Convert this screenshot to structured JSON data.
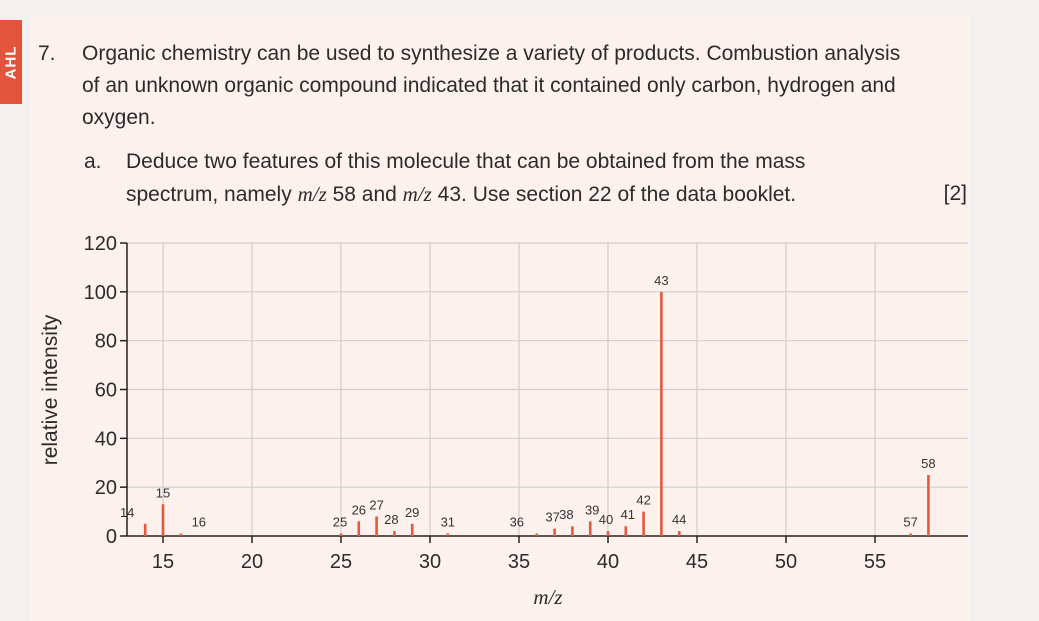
{
  "side_tab": {
    "label": "AHL"
  },
  "question": {
    "number": "7.",
    "text": "Organic chemistry can be used to synthesize a variety of products. Combustion analysis of an unknown organic compound indicated that it contained only carbon, hydrogen and oxygen."
  },
  "part_a": {
    "letter": "a.",
    "line1": "Deduce two features of this molecule that can be obtained from the mass",
    "line2_pre": "spectrum, namely ",
    "mz_1": "m/z",
    "val_1": " 58 and ",
    "mz_2": "m/z",
    "val_2": " 43.  Use section 22 of the data booklet.",
    "marks": "[2]"
  },
  "colors": {
    "bar": "#e4583c",
    "grid": "#cfcfcf",
    "axis": "#222222",
    "accent": "#e2553c"
  },
  "chart_data": {
    "type": "bar",
    "xlabel": "m/z",
    "ylabel": "relative intensity",
    "xlim": [
      13,
      58.5
    ],
    "ylim": [
      0,
      120
    ],
    "xticks": [
      15,
      20,
      25,
      30,
      35,
      40,
      45,
      50,
      55
    ],
    "yticks": [
      0,
      20,
      40,
      60,
      80,
      100,
      120
    ],
    "grid": true,
    "peaks": [
      {
        "mz": 14,
        "intensity": 5,
        "label": "14"
      },
      {
        "mz": 15,
        "intensity": 13,
        "label": "15"
      },
      {
        "mz": 16,
        "intensity": 1,
        "label": "16"
      },
      {
        "mz": 25,
        "intensity": 1,
        "label": "25"
      },
      {
        "mz": 26,
        "intensity": 6,
        "label": "26"
      },
      {
        "mz": 27,
        "intensity": 8,
        "label": "27"
      },
      {
        "mz": 28,
        "intensity": 2,
        "label": "28"
      },
      {
        "mz": 29,
        "intensity": 5,
        "label": "29"
      },
      {
        "mz": 31,
        "intensity": 1,
        "label": "31"
      },
      {
        "mz": 36,
        "intensity": 1,
        "label": "36"
      },
      {
        "mz": 37,
        "intensity": 3,
        "label": "37"
      },
      {
        "mz": 38,
        "intensity": 4,
        "label": "38"
      },
      {
        "mz": 39,
        "intensity": 6,
        "label": "39"
      },
      {
        "mz": 40,
        "intensity": 2,
        "label": "40"
      },
      {
        "mz": 41,
        "intensity": 4,
        "label": "41"
      },
      {
        "mz": 42,
        "intensity": 10,
        "label": "42"
      },
      {
        "mz": 43,
        "intensity": 100,
        "label": "43"
      },
      {
        "mz": 44,
        "intensity": 2,
        "label": "44"
      },
      {
        "mz": 57,
        "intensity": 1,
        "label": "57"
      },
      {
        "mz": 58,
        "intensity": 25,
        "label": "58"
      }
    ]
  }
}
